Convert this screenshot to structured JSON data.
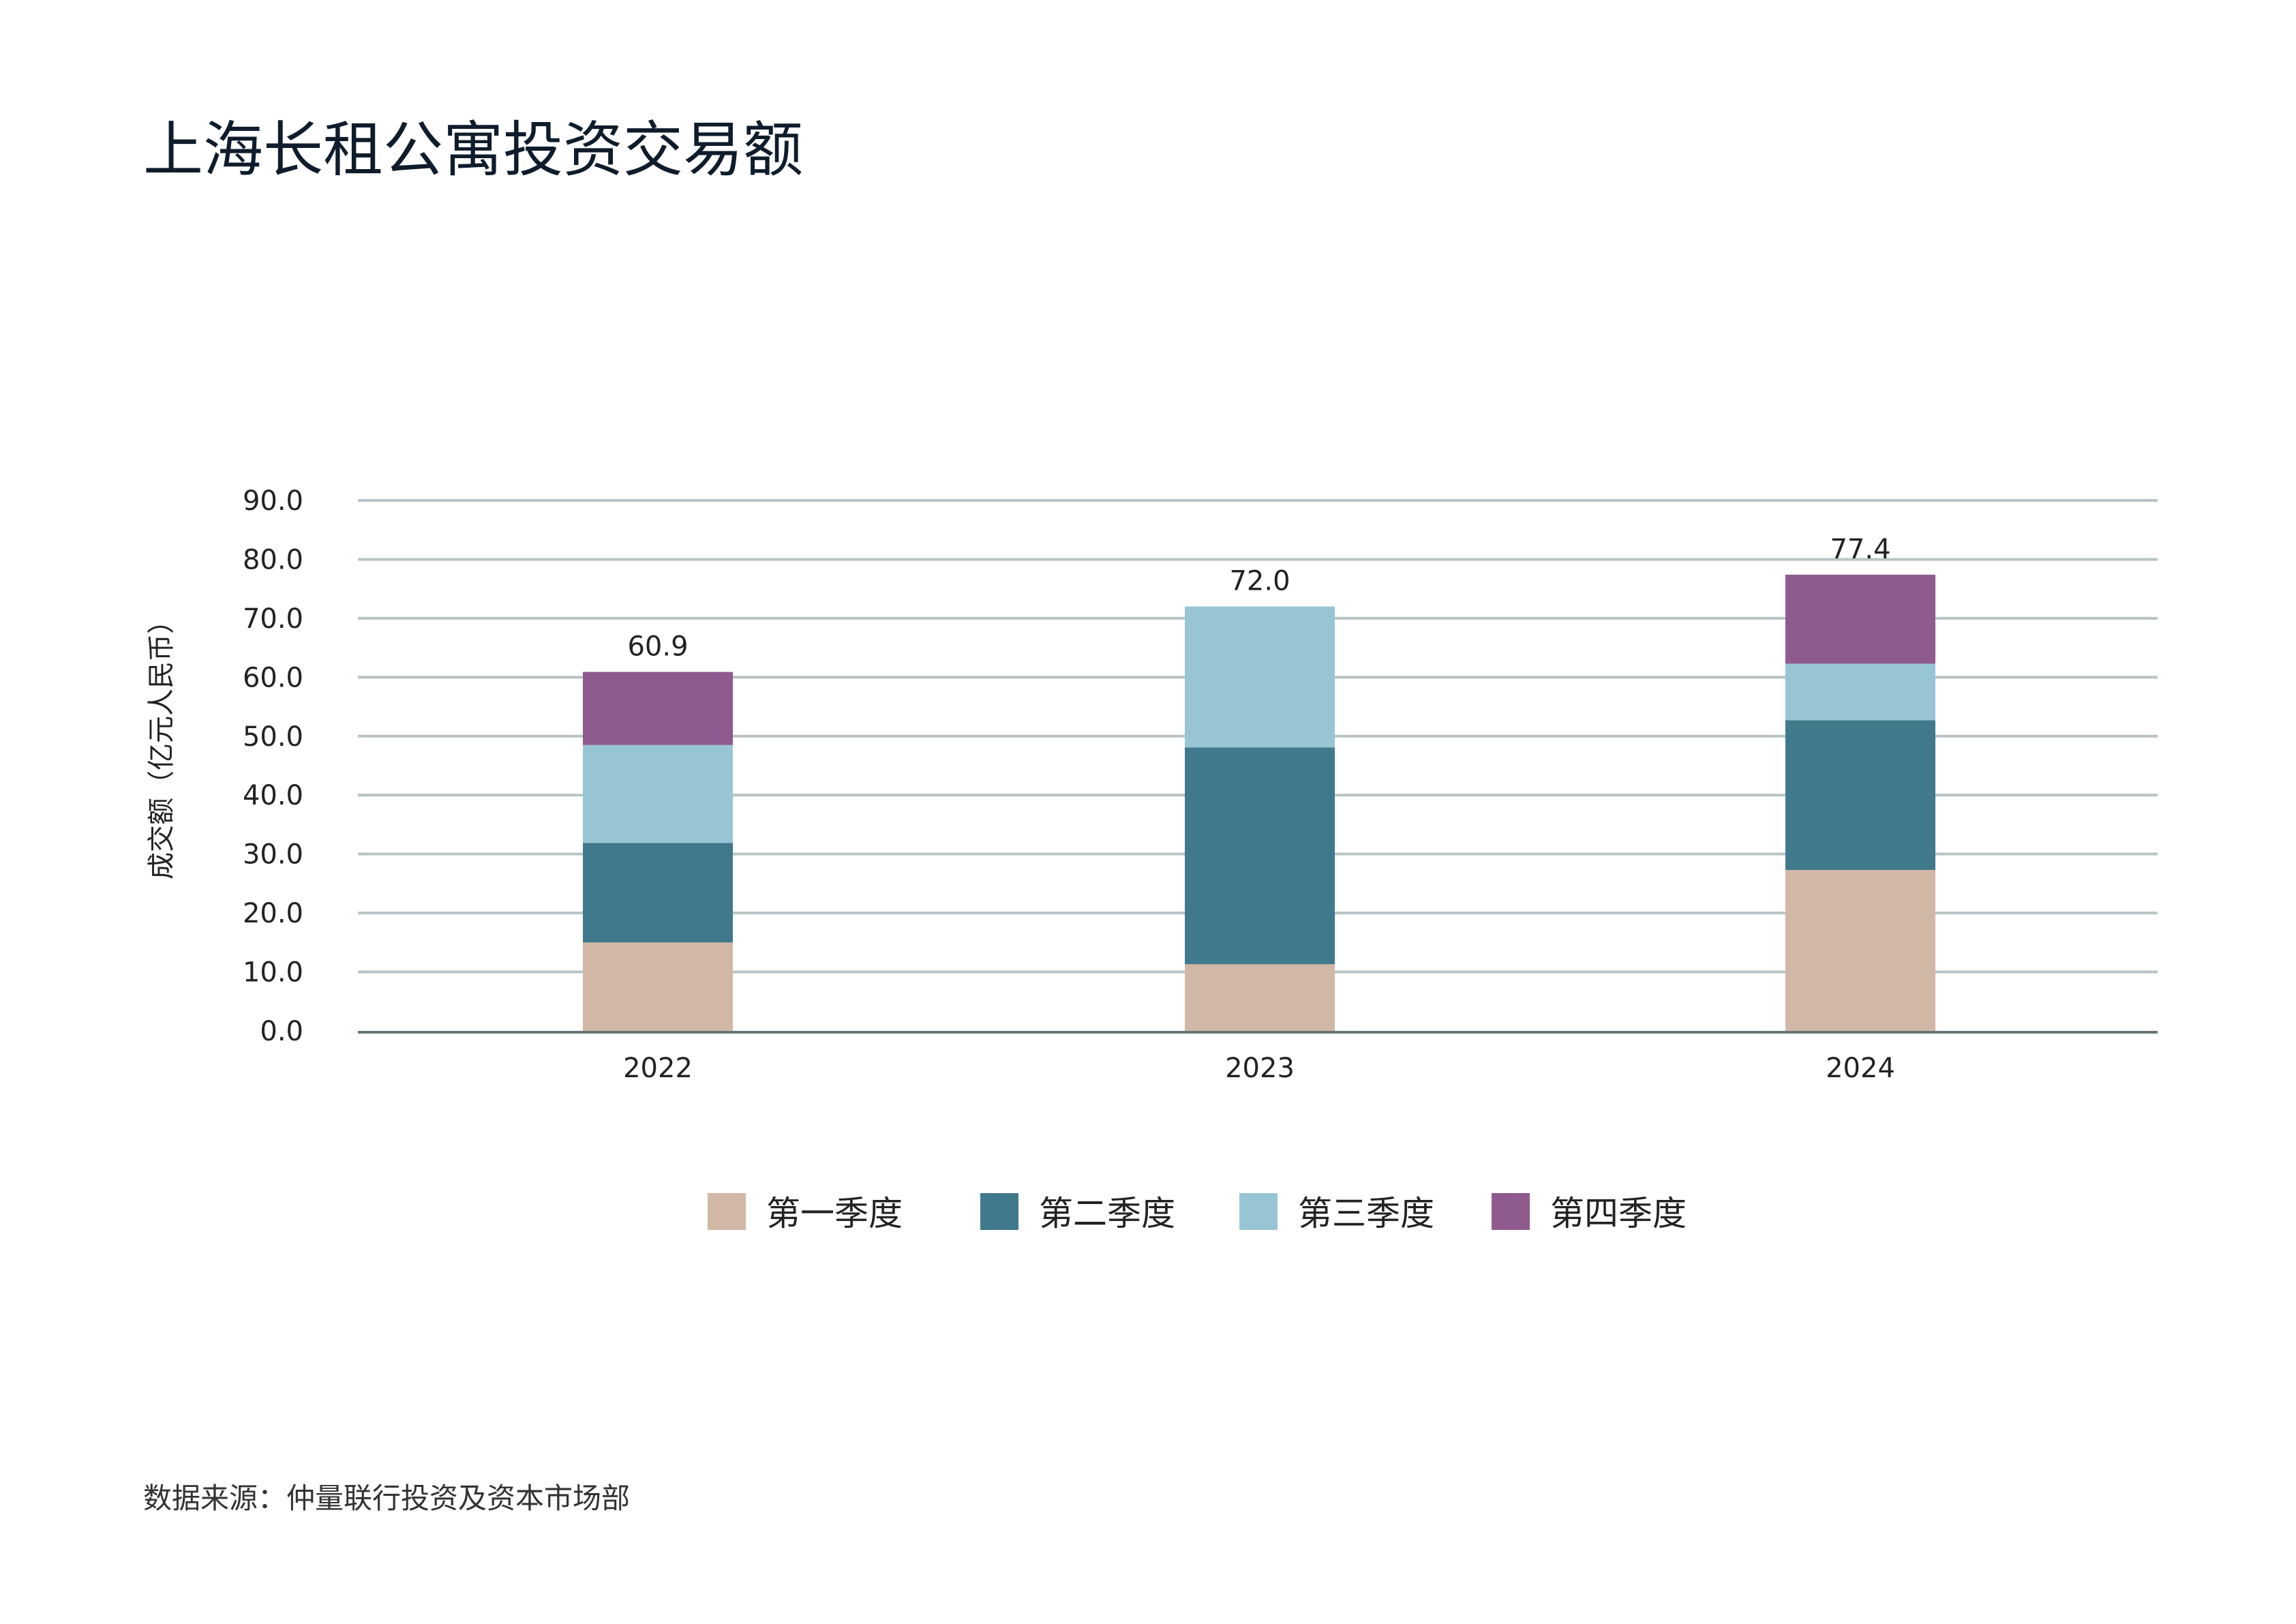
{
  "chart_data": {
    "type": "bar",
    "stacked": true,
    "title": "上海长租公寓投资交易额",
    "ylabel": "成交额（亿元人民币）",
    "xlabel": "",
    "ylim": [
      0,
      90
    ],
    "yticks": [
      "0.0",
      "10.0",
      "20.0",
      "30.0",
      "40.0",
      "50.0",
      "60.0",
      "70.0",
      "80.0",
      "90.0"
    ],
    "grid": true,
    "legend_placement": "bottom",
    "categories": [
      "2022",
      "2023",
      "2024"
    ],
    "series": [
      {
        "name": "第一季度",
        "color": "#d1b7a5",
        "values": [
          15.0,
          11.3,
          27.3
        ]
      },
      {
        "name": "第二季度",
        "color": "#40798c",
        "values": [
          16.9,
          36.8,
          25.4
        ]
      },
      {
        "name": "第三季度",
        "color": "#97c5d4",
        "values": [
          16.6,
          23.9,
          9.6
        ]
      },
      {
        "name": "第四季度",
        "color": "#8f5a8d",
        "values": [
          12.4,
          0,
          15.1
        ]
      }
    ],
    "totals": [
      "60.9",
      "72.0",
      "77.4"
    ],
    "source": "数据来源：仲量联行投资及资本市场部"
  }
}
